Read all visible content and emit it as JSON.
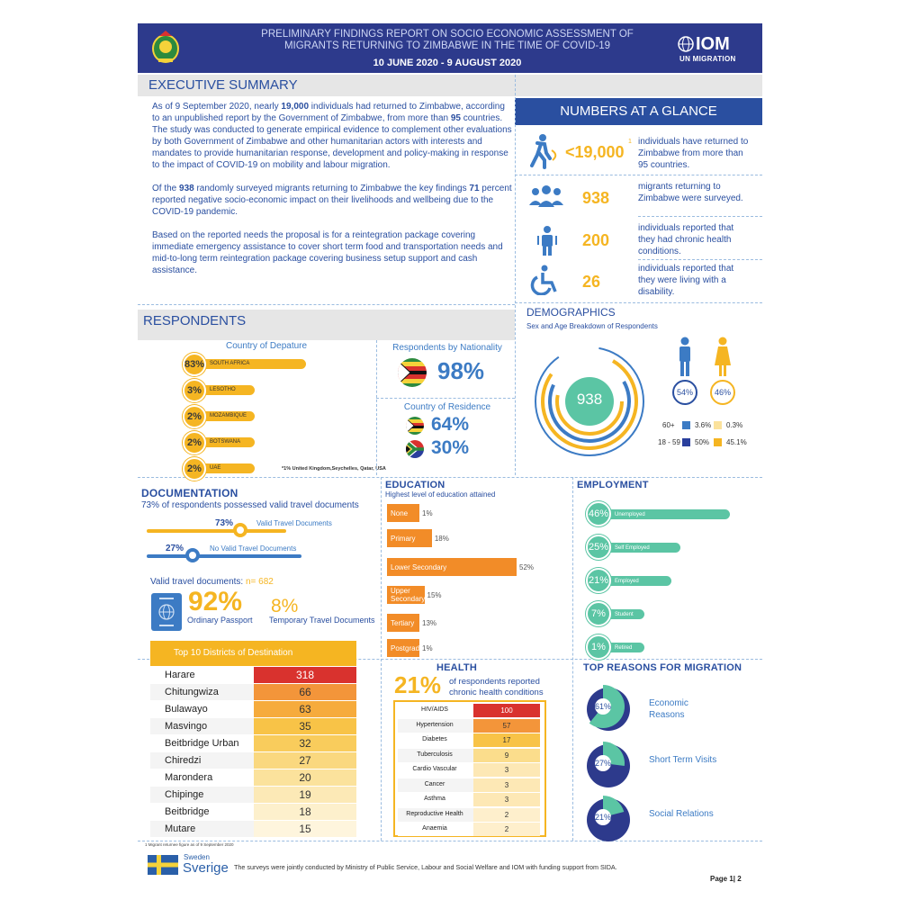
{
  "header": {
    "title_line1": "PRELIMINARY FINDINGS REPORT ON SOCIO ECONOMIC ASSESSMENT OF",
    "title_line2": "MIGRANTS RETURNING TO ZIMBABWE IN THE TIME OF COVID-19",
    "dates": "10 JUNE 2020 - 9 AUGUST 2020",
    "iom_logo": "IOM",
    "iom_tagline": "UN MIGRATION",
    "colors": {
      "band": "#2d3a8c",
      "accent": "#f5b522"
    }
  },
  "executive_summary": {
    "title": "EXECUTIVE SUMMARY",
    "p1_parts": [
      "As of 9 September 2020, nearly ",
      "19,000",
      " individuals had returned to Zimbabwe, according to an unpublished report by the Government of Zimbabwe, from more than ",
      "95",
      " countries. The study was conducted to generate empirical evidence to complement other evaluations by both Government of Zimbabwe and other humanitarian actors with interests and mandates to provide humanitarian response, development and policy-making in response to the impact of COVID-19 on mobility and labour migration."
    ],
    "p2_parts": [
      "Of the ",
      "938",
      " randomly surveyed migrants returning to Zimbabwe the key findings ",
      "71",
      " percent reported negative socio-economic impact on their livelihoods and wellbeing due to the COVID-19 pandemic."
    ],
    "p3": "Based on the reported needs the proposal is for a reintegration package covering immediate emergency assistance to cover short term food and transportation needs and mid-to-long term reintegration package covering business setup support and cash assistance."
  },
  "glance": {
    "title": "NUMBERS AT A GLANCE",
    "items": [
      {
        "value": "<19,000",
        "sup": "1",
        "text": "individuals have returned to Zimbabwe from more than 95 countries.",
        "icon": "walking-person-icon"
      },
      {
        "value": "938",
        "text": "migrants returning to Zimbabwe were surveyed.",
        "icon": "group-icon"
      },
      {
        "value": "200",
        "text": "individuals reported that they had chronic health conditions.",
        "icon": "person-health-icon"
      },
      {
        "value": "26",
        "text": "individuals reported that they were living with a disability.",
        "icon": "wheelchair-icon"
      }
    ]
  },
  "respondents": {
    "title": "RESPONDENTS",
    "departure_title": "Country of Depature",
    "departure": [
      {
        "pct": "83%",
        "country": "SOUTH AFRICA",
        "value": 83
      },
      {
        "pct": "3%",
        "country": "LESOTHO",
        "value": 3
      },
      {
        "pct": "2%",
        "country": "MOZAMBIQUE",
        "value": 2
      },
      {
        "pct": "2%",
        "country": "BOTSWANA",
        "value": 2
      },
      {
        "pct": "2%",
        "country": "UAE",
        "value": 2
      }
    ],
    "footnote": "*1% United Kingdom,Seychelles, Qatar, USA",
    "nationality_title": "Respondents by Nationality",
    "nationality_pct": "98%",
    "residence_title": "Country of Residence",
    "residence": [
      "64%",
      "30%"
    ]
  },
  "demographics": {
    "title": "DEMOGRAPHICS",
    "subtitle": "Sex and Age Breakdown of Respondents",
    "total": "938",
    "male_pct": "54%",
    "female_pct": "46%",
    "rows": [
      {
        "age": "60+",
        "male": "3.6%",
        "female": "0.3%"
      },
      {
        "age": "18 - 59",
        "male": "50%",
        "female": "45.1%"
      }
    ]
  },
  "documentation": {
    "title": "DOCUMENTATION",
    "subtitle": "73% of respondents possessed valid travel documents",
    "valid_pct": "73%",
    "valid_label": "Valid Travel Documents",
    "valid_value": 73,
    "invalid_pct": "27%",
    "invalid_label": "No Valid Travel Documents",
    "invalid_value": 27,
    "n_label": "Valid travel documents: ",
    "n_value": "n= 682",
    "passport_pct": "92%",
    "passport_label": "Ordinary Passport",
    "temp_pct": "8%",
    "temp_label": "Temporary Travel Documents"
  },
  "education": {
    "title": "EDUCATION",
    "subtitle": "Highest level of education attained",
    "levels": [
      {
        "label": "None",
        "pct": "1%",
        "value": 1
      },
      {
        "label": "Primary",
        "pct": "18%",
        "value": 18
      },
      {
        "label": "Lower Secondary",
        "pct": "52%",
        "value": 52
      },
      {
        "label": "Upper Secondary",
        "pct": "15%",
        "value": 15
      },
      {
        "label": "Tertiary",
        "pct": "13%",
        "value": 13
      },
      {
        "label": "Postgraduate",
        "pct": "1%",
        "value": 1
      }
    ]
  },
  "employment": {
    "title": "EMPLOYMENT",
    "items": [
      {
        "pct": "46%",
        "label": "Unemployed",
        "value": 46
      },
      {
        "pct": "25%",
        "label": "Self Employed",
        "value": 25
      },
      {
        "pct": "21%",
        "label": "Employed",
        "value": 21
      },
      {
        "pct": "7%",
        "label": "Student",
        "value": 7
      },
      {
        "pct": "1%",
        "label": "Retired",
        "value": 1
      }
    ]
  },
  "districts": {
    "title": "Top 10 Districts of Destination",
    "rows": [
      {
        "name": "Harare",
        "value": "318",
        "color": "#d9322e"
      },
      {
        "name": "Chitungwiza",
        "value": "66",
        "color": "#f3953a"
      },
      {
        "name": "Bulawayo",
        "value": "63",
        "color": "#f6ab3c"
      },
      {
        "name": "Masvingo",
        "value": "35",
        "color": "#f8c347"
      },
      {
        "name": "Beitbridge Urban",
        "value": "32",
        "color": "#f9cc5c"
      },
      {
        "name": "Chiredzi",
        "value": "27",
        "color": "#fad87f"
      },
      {
        "name": "Marondera",
        "value": "20",
        "color": "#fbe29c"
      },
      {
        "name": "Chipinge",
        "value": "19",
        "color": "#fce9b6"
      },
      {
        "name": "Beitbridge",
        "value": "18",
        "color": "#fdf0cc"
      },
      {
        "name": "Mutare",
        "value": "15",
        "color": "#fef5dd"
      }
    ],
    "footnote": "1 Migrant returnee figure as of 9 September 2020"
  },
  "health": {
    "title": "HEALTH",
    "pct": "21%",
    "text": "of respondents reported chronic health conditions",
    "rows": [
      {
        "name": "HIV/AIDS",
        "value": "100",
        "color": "#d9322e"
      },
      {
        "name": "Hypertension",
        "value": "57",
        "color": "#f3953a"
      },
      {
        "name": "Diabetes",
        "value": "17",
        "color": "#f8c347"
      },
      {
        "name": "Tuberculosis",
        "value": "9",
        "color": "#fbdd8c"
      },
      {
        "name": "Cardio Vascular",
        "value": "3",
        "color": "#fde8b5"
      },
      {
        "name": "Cancer",
        "value": "3",
        "color": "#fde8b5"
      },
      {
        "name": "Asthma",
        "value": "3",
        "color": "#fde8b5"
      },
      {
        "name": "Reproductive  Health",
        "value": "2",
        "color": "#feefcc"
      },
      {
        "name": "Anaemia",
        "value": "2",
        "color": "#feefcc"
      }
    ]
  },
  "reasons": {
    "title": "TOP REASONS FOR MIGRATION",
    "items": [
      {
        "pct": "61%",
        "label_line1": "Economic",
        "label_line2": "Reasons",
        "value": 61
      },
      {
        "pct": "27%",
        "label_line1": "Short Term Visits",
        "label_line2": "",
        "value": 27
      },
      {
        "pct": "21%",
        "label_line1": "Social Relations",
        "label_line2": "",
        "value": 21
      }
    ]
  },
  "footer": {
    "sweden_line1": "Sweden",
    "sweden_line2": "Sverige",
    "text": "The surveys were jointly conducted by Ministry of Public Service, Labour and Social Welfare and IOM with funding support from SIDA.",
    "page": "Page 1| 2"
  }
}
